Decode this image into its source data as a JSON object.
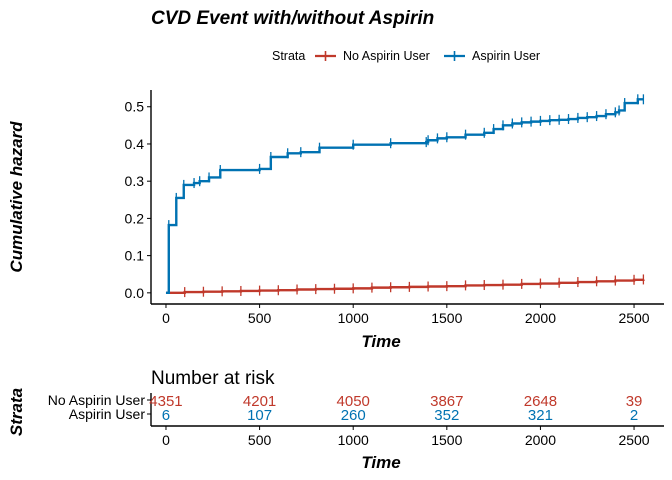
{
  "chart_data": [
    {
      "type": "line",
      "title": "CVD Event with/without Aspirin",
      "xlabel": "Time",
      "ylabel": "Cumulative hazard",
      "xlim": [
        -80,
        2660
      ],
      "ylim": [
        -0.03,
        0.545
      ],
      "x_ticks": [
        0,
        500,
        1000,
        1500,
        2000,
        2500
      ],
      "y_ticks": [
        0.0,
        0.1,
        0.2,
        0.3,
        0.4,
        0.5
      ],
      "y_tick_labels": [
        "0.0",
        "0.1",
        "0.2",
        "0.3",
        "0.4",
        "0.5"
      ],
      "grid": false,
      "legend": {
        "title": "Strata",
        "position": "top",
        "items": [
          "No Aspirin User",
          "Aspirin User"
        ]
      },
      "series": [
        {
          "name": "No Aspirin User",
          "color": "#c0392b",
          "x": [
            0,
            100,
            200,
            300,
            400,
            500,
            600,
            700,
            800,
            900,
            1000,
            1100,
            1200,
            1300,
            1400,
            1500,
            1600,
            1700,
            1800,
            1900,
            2000,
            2100,
            2200,
            2300,
            2400,
            2500,
            2550
          ],
          "y": [
            0,
            0.002,
            0.003,
            0.004,
            0.005,
            0.006,
            0.007,
            0.009,
            0.01,
            0.011,
            0.012,
            0.014,
            0.015,
            0.016,
            0.017,
            0.018,
            0.02,
            0.021,
            0.022,
            0.024,
            0.025,
            0.027,
            0.029,
            0.031,
            0.033,
            0.035,
            0.036
          ]
        },
        {
          "name": "Aspirin User",
          "color": "#0072b2",
          "x": [
            0,
            15,
            55,
            95,
            150,
            180,
            230,
            290,
            500,
            560,
            650,
            720,
            820,
            1000,
            1200,
            1390,
            1400,
            1450,
            1500,
            1600,
            1700,
            1750,
            1800,
            1850,
            1900,
            1950,
            2000,
            2050,
            2100,
            2150,
            2200,
            2250,
            2300,
            2350,
            2400,
            2420,
            2450,
            2520,
            2550
          ],
          "y": [
            0,
            0.182,
            0.255,
            0.29,
            0.295,
            0.3,
            0.31,
            0.33,
            0.333,
            0.365,
            0.375,
            0.378,
            0.39,
            0.398,
            0.402,
            0.405,
            0.41,
            0.415,
            0.418,
            0.425,
            0.43,
            0.44,
            0.45,
            0.455,
            0.458,
            0.46,
            0.462,
            0.464,
            0.465,
            0.467,
            0.47,
            0.472,
            0.475,
            0.48,
            0.485,
            0.49,
            0.51,
            0.52,
            0.52
          ]
        }
      ]
    },
    {
      "type": "table",
      "title": "Number at risk",
      "xlabel": "Time",
      "ylabel": "Strata",
      "xlim": [
        -80,
        2660
      ],
      "x_ticks": [
        0,
        500,
        1000,
        1500,
        2000,
        2500
      ],
      "rows": [
        {
          "name": "No Aspirin User",
          "color": "#c0392b",
          "values": [
            "4351",
            "4201",
            "4050",
            "3867",
            "2648",
            "39"
          ]
        },
        {
          "name": "Aspirin User",
          "color": "#0072b2",
          "values": [
            "6",
            "107",
            "260",
            "352",
            "321",
            "2"
          ]
        }
      ]
    }
  ]
}
